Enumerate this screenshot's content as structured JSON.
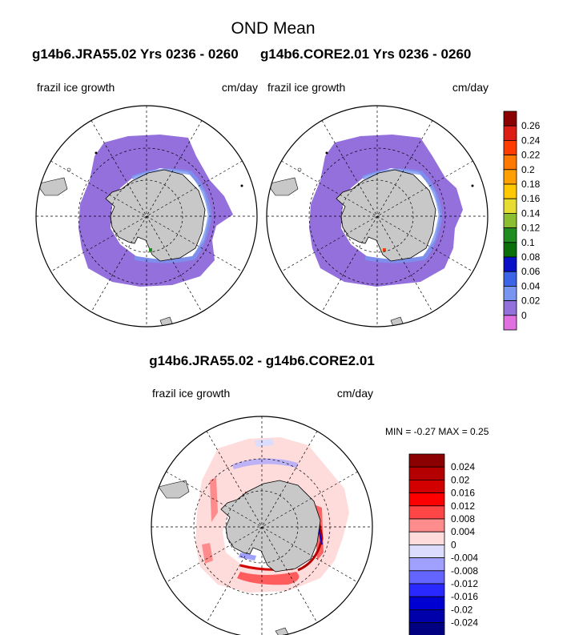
{
  "title": "OND Mean",
  "panels": [
    {
      "run_title": "g14b6.JRA55.02  Yrs 0236 - 0260",
      "left_label": "frazil ice growth",
      "right_label": "cm/day"
    },
    {
      "run_title": "g14b6.CORE2.01  Yrs 0236 - 0260",
      "left_label": "frazil ice growth",
      "right_label": "cm/day"
    }
  ],
  "difference": {
    "title": "g14b6.JRA55.02 - g14b6.CORE2.01",
    "left_label": "frazil ice growth",
    "right_label": "cm/day",
    "minmax_text": "MIN =  -0.27 MAX =   0.25"
  },
  "chart_data": [
    {
      "type": "heatmap",
      "projection": "south polar stereographic",
      "field": "frazil ice growth",
      "units": "cm/day",
      "colorbar_levels": [
        "0.26",
        "0.24",
        "0.22",
        "0.2",
        "0.18",
        "0.16",
        "0.14",
        "0.12",
        "0.1",
        "0.08",
        "0.06",
        "0.04",
        "0.02",
        "0"
      ],
      "colorbar_colors": [
        "#8b0000",
        "#dc1e14",
        "#ff3c00",
        "#ff7800",
        "#ff9f00",
        "#ffc800",
        "#e6dc32",
        "#8cbe32",
        "#1e8c1e",
        "#0a6e0a",
        "#0a10c8",
        "#3c64e6",
        "#7896f0",
        "#9370db",
        "#e070e0"
      ]
    },
    {
      "type": "heatmap",
      "projection": "south polar stereographic",
      "field": "frazil ice growth (difference)",
      "units": "cm/day",
      "min": -0.27,
      "max": 0.25,
      "colorbar_levels": [
        "0.024",
        "0.02",
        "0.016",
        "0.012",
        "0.008",
        "0.004",
        "0",
        "-0.004",
        "-0.008",
        "-0.012",
        "-0.016",
        "-0.02",
        "-0.024"
      ],
      "colorbar_colors": [
        "#8b0000",
        "#b40000",
        "#d20000",
        "#ff0000",
        "#ff4646",
        "#ff8c8c",
        "#ffdcdc",
        "#dcdcff",
        "#a0a0ff",
        "#6464ff",
        "#2828ff",
        "#0000d2",
        "#0000aa",
        "#000080"
      ]
    }
  ],
  "colors": {
    "land": "#c8c8c8",
    "ice_growth_zero": "#9370db"
  }
}
